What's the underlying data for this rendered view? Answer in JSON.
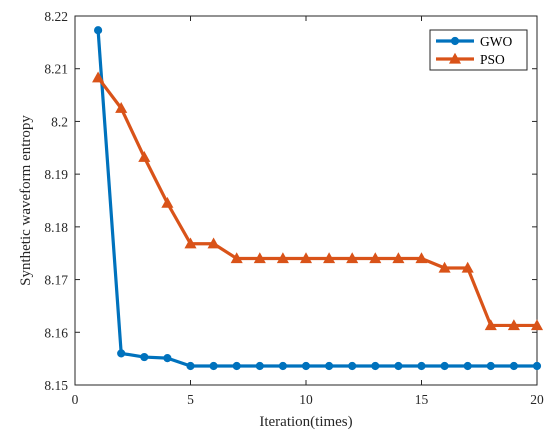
{
  "chart_data": {
    "type": "line",
    "xlabel": "Iteration(times)",
    "ylabel": "Synthetic waveform entropy",
    "xlim": [
      0,
      20
    ],
    "ylim": [
      8.15,
      8.22
    ],
    "xticks": [
      "0",
      "5",
      "10",
      "15",
      "20"
    ],
    "yticks": [
      "8.15",
      "8.16",
      "8.17",
      "8.18",
      "8.19",
      "8.2",
      "8.21",
      "8.22"
    ],
    "grid": false,
    "legend_position": "top-right",
    "x": [
      1,
      2,
      3,
      4,
      5,
      6,
      7,
      8,
      9,
      10,
      11,
      12,
      13,
      14,
      15,
      16,
      17,
      18,
      19,
      20
    ],
    "series": [
      {
        "name": "GWO",
        "color": "#0072BD",
        "marker": "circle",
        "values": [
          8.2173,
          8.156,
          8.1553,
          8.1551,
          8.1536,
          8.1536,
          8.1536,
          8.1536,
          8.1536,
          8.1536,
          8.1536,
          8.1536,
          8.1536,
          8.1536,
          8.1536,
          8.1536,
          8.1536,
          8.1536,
          8.1536,
          8.1536
        ]
      },
      {
        "name": "PSO",
        "color": "#D95319",
        "marker": "triangle",
        "values": [
          8.2083,
          8.2025,
          8.1932,
          8.1845,
          8.1768,
          8.1768,
          8.174,
          8.174,
          8.174,
          8.174,
          8.174,
          8.174,
          8.174,
          8.174,
          8.174,
          8.1722,
          8.1722,
          8.1613,
          8.1613,
          8.1613
        ]
      }
    ]
  }
}
